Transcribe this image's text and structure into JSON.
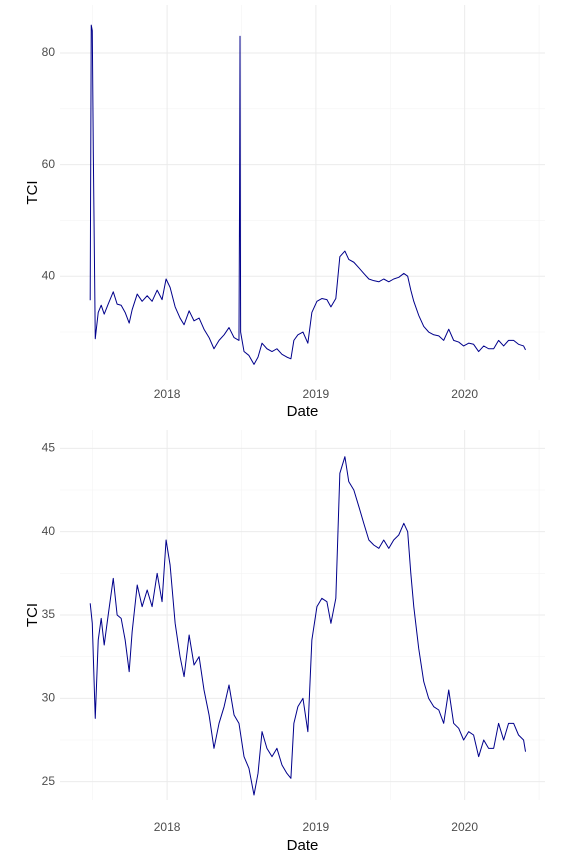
{
  "chart_data": [
    {
      "type": "line",
      "x_label": "Date",
      "y_label": "TCI",
      "color": "#00008b",
      "grid": true,
      "xlim": [
        2017.28,
        2020.54
      ],
      "xticks": [
        2018,
        2019,
        2020
      ],
      "ylim": [
        21.4,
        88.6
      ],
      "yticks": [
        40,
        60,
        80
      ],
      "x": [
        2017.483,
        2017.49,
        2017.497,
        2017.504,
        2017.517,
        2017.537,
        2017.557,
        2017.577,
        2017.604,
        2017.638,
        2017.664,
        2017.691,
        2017.718,
        2017.745,
        2017.765,
        2017.799,
        2017.832,
        2017.866,
        2017.899,
        2017.933,
        2017.966,
        2017.993,
        2018.02,
        2018.054,
        2018.087,
        2018.114,
        2018.148,
        2018.181,
        2018.215,
        2018.248,
        2018.282,
        2018.315,
        2018.349,
        2018.383,
        2018.416,
        2018.45,
        2018.483,
        2018.487,
        2018.49,
        2018.494,
        2018.517,
        2018.55,
        2018.584,
        2018.611,
        2018.638,
        2018.671,
        2018.705,
        2018.738,
        2018.772,
        2018.805,
        2018.832,
        2018.852,
        2018.879,
        2018.913,
        2018.946,
        2018.973,
        2019.007,
        2019.04,
        2019.074,
        2019.101,
        2019.134,
        2019.161,
        2019.195,
        2019.221,
        2019.255,
        2019.289,
        2019.322,
        2019.356,
        2019.389,
        2019.423,
        2019.456,
        2019.49,
        2019.523,
        2019.557,
        2019.591,
        2019.617,
        2019.638,
        2019.658,
        2019.691,
        2019.725,
        2019.758,
        2019.792,
        2019.826,
        2019.859,
        2019.893,
        2019.926,
        2019.96,
        2019.993,
        2020.027,
        2020.06,
        2020.094,
        2020.128,
        2020.161,
        2020.195,
        2020.228,
        2020.262,
        2020.295,
        2020.329,
        2020.362,
        2020.396,
        2020.409
      ],
      "values": [
        35.7,
        85,
        84,
        62,
        28.8,
        33.5,
        34.8,
        33.2,
        35,
        37.2,
        35,
        34.8,
        33.5,
        31.6,
        34,
        36.8,
        35.5,
        36.5,
        35.5,
        37.5,
        35.8,
        39.5,
        38,
        34.5,
        32.5,
        31.3,
        33.8,
        32,
        32.5,
        30.5,
        29,
        27,
        28.5,
        29.5,
        30.8,
        29,
        28.5,
        54,
        83,
        30,
        26.5,
        25.8,
        24.2,
        25.5,
        28,
        27,
        26.5,
        27,
        26,
        25.5,
        25.2,
        28.5,
        29.5,
        30,
        28,
        33.5,
        35.5,
        36,
        35.8,
        34.5,
        36,
        43.5,
        44.5,
        43,
        42.5,
        41.5,
        40.5,
        39.5,
        39.2,
        39,
        39.5,
        39,
        39.5,
        39.8,
        40.5,
        40,
        37.5,
        35.5,
        33,
        31,
        30,
        29.5,
        29.3,
        28.5,
        30.5,
        28.5,
        28.2,
        27.5,
        28,
        27.8,
        26.5,
        27.5,
        27,
        27,
        28.5,
        27.5,
        28.5,
        28.5,
        27.8,
        27.5,
        26.8
      ]
    },
    {
      "type": "line",
      "x_label": "Date",
      "y_label": "TCI",
      "color": "#00008b",
      "grid": true,
      "xlim": [
        2017.28,
        2020.54
      ],
      "xticks": [
        2018,
        2019,
        2020
      ],
      "ylim": [
        23.9,
        46.1
      ],
      "yticks": [
        25,
        30,
        35,
        40,
        45
      ],
      "x": [
        2017.483,
        2017.497,
        2017.517,
        2017.537,
        2017.557,
        2017.577,
        2017.604,
        2017.638,
        2017.664,
        2017.691,
        2017.718,
        2017.745,
        2017.765,
        2017.799,
        2017.832,
        2017.866,
        2017.899,
        2017.933,
        2017.966,
        2017.993,
        2018.02,
        2018.054,
        2018.087,
        2018.114,
        2018.148,
        2018.181,
        2018.215,
        2018.248,
        2018.282,
        2018.315,
        2018.349,
        2018.383,
        2018.416,
        2018.45,
        2018.483,
        2018.517,
        2018.55,
        2018.584,
        2018.611,
        2018.638,
        2018.671,
        2018.705,
        2018.738,
        2018.772,
        2018.805,
        2018.832,
        2018.852,
        2018.879,
        2018.913,
        2018.946,
        2018.973,
        2019.007,
        2019.04,
        2019.074,
        2019.101,
        2019.134,
        2019.161,
        2019.195,
        2019.221,
        2019.255,
        2019.289,
        2019.322,
        2019.356,
        2019.389,
        2019.423,
        2019.456,
        2019.49,
        2019.523,
        2019.557,
        2019.591,
        2019.617,
        2019.638,
        2019.658,
        2019.691,
        2019.725,
        2019.758,
        2019.792,
        2019.826,
        2019.859,
        2019.893,
        2019.926,
        2019.96,
        2019.993,
        2020.027,
        2020.06,
        2020.094,
        2020.128,
        2020.161,
        2020.195,
        2020.228,
        2020.262,
        2020.295,
        2020.329,
        2020.362,
        2020.396,
        2020.409
      ],
      "values": [
        35.7,
        34.5,
        28.8,
        33.5,
        34.8,
        33.2,
        35,
        37.2,
        35,
        34.8,
        33.5,
        31.6,
        34,
        36.8,
        35.5,
        36.5,
        35.5,
        37.5,
        35.8,
        39.5,
        38,
        34.5,
        32.5,
        31.3,
        33.8,
        32,
        32.5,
        30.5,
        29,
        27,
        28.5,
        29.5,
        30.8,
        29,
        28.5,
        26.5,
        25.8,
        24.2,
        25.5,
        28,
        27,
        26.5,
        27,
        26,
        25.5,
        25.2,
        28.5,
        29.5,
        30,
        28,
        33.5,
        35.5,
        36,
        35.8,
        34.5,
        36,
        43.5,
        44.5,
        43,
        42.5,
        41.5,
        40.5,
        39.5,
        39.2,
        39,
        39.5,
        39,
        39.5,
        39.8,
        40.5,
        40,
        37.5,
        35.5,
        33,
        31,
        30,
        29.5,
        29.3,
        28.5,
        30.5,
        28.5,
        28.2,
        27.5,
        28,
        27.8,
        26.5,
        27.5,
        27,
        27,
        28.5,
        27.5,
        28.5,
        28.5,
        27.8,
        27.5,
        26.8
      ]
    }
  ]
}
